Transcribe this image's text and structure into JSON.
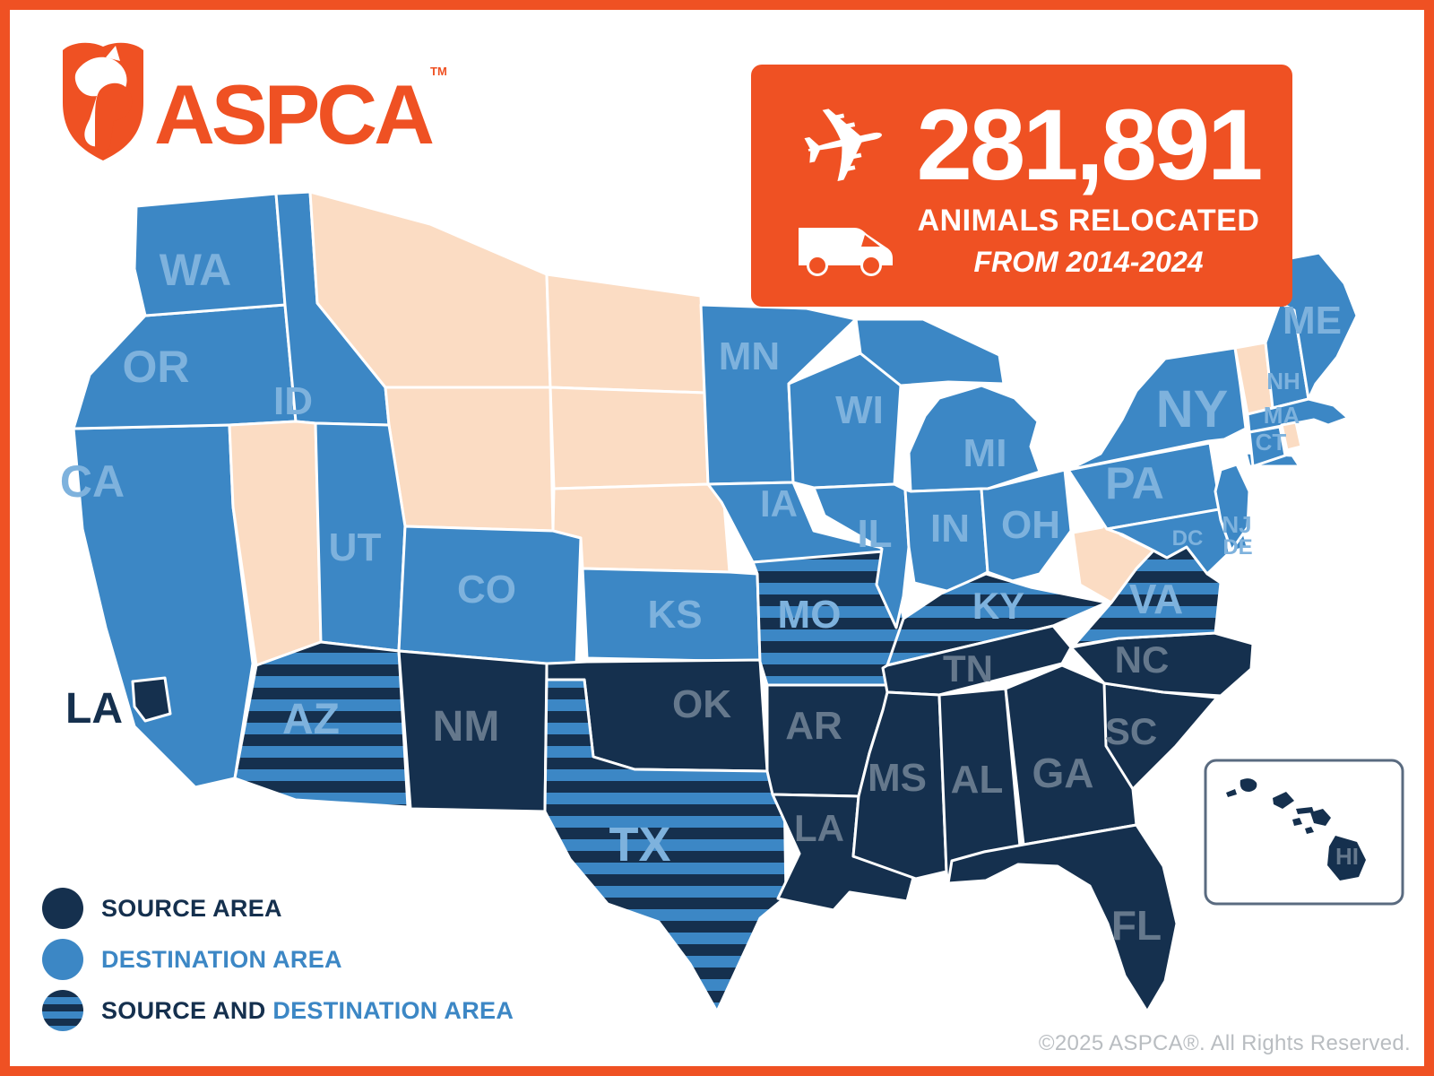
{
  "brand": {
    "name": "ASPCA",
    "trademark": "TM",
    "orange": "#EF5123"
  },
  "stat_box": {
    "value": "281,891",
    "subtitle": "ANIMALS RELOCATED",
    "period": "FROM 2014-2024",
    "plane_icon": "airplane-icon",
    "van_icon": "transport-van-icon"
  },
  "legend": {
    "items": [
      {
        "swatch": "source",
        "parts": [
          {
            "text": "SOURCE AREA",
            "tone": "source"
          }
        ]
      },
      {
        "swatch": "destination",
        "parts": [
          {
            "text": "DESTINATION AREA",
            "tone": "destination"
          }
        ]
      },
      {
        "swatch": "both",
        "parts": [
          {
            "text": "SOURCE AND ",
            "tone": "source"
          },
          {
            "text": "DESTINATION AREA",
            "tone": "destination"
          }
        ]
      }
    ]
  },
  "colors": {
    "source": "#15304E",
    "destination": "#3C87C5",
    "both_stripes": [
      "#15304E",
      "#3C87C5"
    ],
    "not_in_program": "#FBDCC3",
    "label_on_source": "#65788C",
    "label_on_destination": "#7EB2DD",
    "border": "#FFFFFF"
  },
  "map": {
    "states": [
      {
        "abbr": "CA",
        "category": "destination",
        "show_label": true
      },
      {
        "abbr": "OR",
        "category": "destination",
        "show_label": true
      },
      {
        "abbr": "WA",
        "category": "destination",
        "show_label": true
      },
      {
        "abbr": "ID",
        "category": "destination",
        "show_label": true
      },
      {
        "abbr": "MT",
        "category": "none",
        "show_label": false
      },
      {
        "abbr": "ND",
        "category": "none",
        "show_label": false
      },
      {
        "abbr": "SD",
        "category": "none",
        "show_label": false
      },
      {
        "abbr": "NE",
        "category": "none",
        "show_label": false
      },
      {
        "abbr": "WY",
        "category": "none",
        "show_label": false
      },
      {
        "abbr": "NV",
        "category": "none",
        "show_label": false
      },
      {
        "abbr": "UT",
        "category": "destination",
        "show_label": true
      },
      {
        "abbr": "CO",
        "category": "destination",
        "show_label": true
      },
      {
        "abbr": "AZ",
        "category": "both",
        "show_label": true
      },
      {
        "abbr": "NM",
        "category": "source",
        "show_label": true
      },
      {
        "abbr": "KS",
        "category": "destination",
        "show_label": true
      },
      {
        "abbr": "OK",
        "category": "source",
        "show_label": true
      },
      {
        "abbr": "TX",
        "category": "both",
        "show_label": true
      },
      {
        "abbr": "MN",
        "category": "destination",
        "show_label": true
      },
      {
        "abbr": "IA",
        "category": "destination",
        "show_label": true
      },
      {
        "abbr": "MO",
        "category": "both",
        "show_label": true
      },
      {
        "abbr": "AR",
        "category": "source",
        "show_label": true
      },
      {
        "abbr": "LA",
        "category": "source",
        "show_label": true
      },
      {
        "abbr": "WI",
        "category": "destination",
        "show_label": true
      },
      {
        "abbr": "IL",
        "category": "destination",
        "show_label": true
      },
      {
        "abbr": "MI",
        "category": "destination",
        "show_label": true
      },
      {
        "abbr": "IN",
        "category": "destination",
        "show_label": true
      },
      {
        "abbr": "OH",
        "category": "destination",
        "show_label": true
      },
      {
        "abbr": "KY",
        "category": "both",
        "show_label": true
      },
      {
        "abbr": "TN",
        "category": "source",
        "show_label": true
      },
      {
        "abbr": "MS",
        "category": "source",
        "show_label": true
      },
      {
        "abbr": "AL",
        "category": "source",
        "show_label": true
      },
      {
        "abbr": "GA",
        "category": "source",
        "show_label": true
      },
      {
        "abbr": "FL",
        "category": "source",
        "show_label": true
      },
      {
        "abbr": "SC",
        "category": "source",
        "show_label": true
      },
      {
        "abbr": "NC",
        "category": "source",
        "show_label": true
      },
      {
        "abbr": "VA",
        "category": "both",
        "show_label": true
      },
      {
        "abbr": "WV",
        "category": "none",
        "show_label": false
      },
      {
        "abbr": "PA",
        "category": "destination",
        "show_label": true
      },
      {
        "abbr": "MD",
        "category": "destination",
        "show_label": false
      },
      {
        "abbr": "DE",
        "category": "destination",
        "show_label": true
      },
      {
        "abbr": "NJ",
        "category": "destination",
        "show_label": true
      },
      {
        "abbr": "NY",
        "category": "destination",
        "show_label": true
      },
      {
        "abbr": "VT",
        "category": "none",
        "show_label": false
      },
      {
        "abbr": "NH",
        "category": "destination",
        "show_label": true
      },
      {
        "abbr": "ME",
        "category": "destination",
        "show_label": true
      },
      {
        "abbr": "MA",
        "category": "destination",
        "show_label": true
      },
      {
        "abbr": "CT",
        "category": "destination",
        "show_label": true
      },
      {
        "abbr": "RI",
        "category": "none",
        "show_label": false
      }
    ],
    "dc_label": {
      "abbr": "DC",
      "category": "destination"
    },
    "city_marker": {
      "label": "LA",
      "category": "source"
    },
    "inset": {
      "label": "HI",
      "category": "source"
    }
  },
  "footer": {
    "copyright": "©2025 ASPCA®.  All Rights Reserved."
  }
}
